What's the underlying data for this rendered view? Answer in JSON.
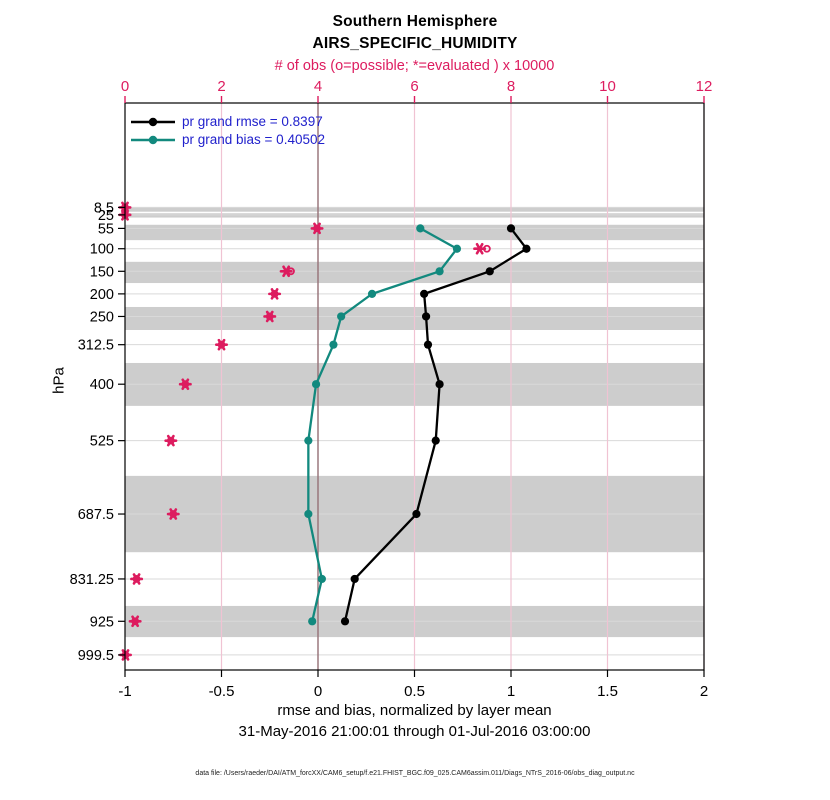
{
  "title": {
    "line1": "Southern Hemisphere",
    "line2": "AIRS_SPECIFIC_HUMIDITY"
  },
  "top_axis": {
    "label": "# of obs (o=possible; *=evaluated ) x 10000",
    "ticks": [
      0,
      2,
      4,
      6,
      8,
      10,
      12
    ],
    "range": [
      0,
      12
    ],
    "color": "#dd1c5f"
  },
  "bottom_axis": {
    "label": "rmse and bias, normalized by layer mean",
    "sublabel": "31-May-2016 21:00:01 through 01-Jul-2016 03:00:00",
    "ticks": [
      -1,
      -0.5,
      0,
      0.5,
      1,
      1.5,
      2
    ],
    "range": [
      -1,
      2
    ]
  },
  "left_axis": {
    "label": "hPa",
    "ticks": [
      8.5,
      25,
      55,
      100,
      150,
      200,
      250,
      312.5,
      400,
      525,
      687.5,
      831.25,
      925,
      999.5
    ]
  },
  "legend": [
    {
      "label": "pr grand rmse = 0.8397",
      "color": "#000000"
    },
    {
      "label": "pr grand bias = 0.40502",
      "color": "#12897e"
    }
  ],
  "footer": "data file: /Users/raeder/DAI/ATM_forcXX/CAM6_setup/f.e21.FHIST_BGC.f09_025.CAM6assim.011/Diags_NTrS_2016-06/obs_diag_output.nc",
  "colors": {
    "obs_magenta": "#dd1c5f",
    "grid_pink": "#f0c3d3",
    "zero_line": "#8d6a6e",
    "band_gray": "#cdcdcd",
    "level_gridline": "#d9d9d9",
    "legend_text_blue": "#2121cc",
    "rmse_black": "#000000",
    "bias_teal": "#12897e"
  },
  "chart_data": {
    "type": "line",
    "title": "Southern Hemisphere AIRS_SPECIFIC_HUMIDITY",
    "xlabel": "rmse and bias, normalized by layer mean",
    "ylabel": "hPa",
    "xlim": [
      -1,
      2
    ],
    "top_xlim_obs_x10000": [
      0,
      12
    ],
    "pressure_levels": [
      8.5,
      25,
      55,
      100,
      150,
      200,
      250,
      312.5,
      400,
      525,
      687.5,
      831.25,
      925,
      999.5
    ],
    "series": [
      {
        "name": "pr grand rmse",
        "color": "#000000",
        "points": [
          {
            "p": 55,
            "v": 1.0
          },
          {
            "p": 100,
            "v": 1.08
          },
          {
            "p": 150,
            "v": 0.89
          },
          {
            "p": 200,
            "v": 0.55
          },
          {
            "p": 250,
            "v": 0.56
          },
          {
            "p": 312.5,
            "v": 0.57
          },
          {
            "p": 400,
            "v": 0.63
          },
          {
            "p": 525,
            "v": 0.61
          },
          {
            "p": 687.5,
            "v": 0.51
          },
          {
            "p": 831.25,
            "v": 0.19
          },
          {
            "p": 925,
            "v": 0.14
          }
        ]
      },
      {
        "name": "pr grand bias",
        "color": "#12897e",
        "points": [
          {
            "p": 55,
            "v": 0.53
          },
          {
            "p": 100,
            "v": 0.72
          },
          {
            "p": 150,
            "v": 0.63
          },
          {
            "p": 200,
            "v": 0.28
          },
          {
            "p": 250,
            "v": 0.12
          },
          {
            "p": 312.5,
            "v": 0.08
          },
          {
            "p": 400,
            "v": -0.01
          },
          {
            "p": 525,
            "v": -0.05
          },
          {
            "p": 687.5,
            "v": -0.05
          },
          {
            "p": 831.25,
            "v": 0.02
          },
          {
            "p": 925,
            "v": -0.03
          }
        ]
      }
    ],
    "obs_counts_x10000": [
      {
        "p": 8.5,
        "possible": 0.0,
        "evaluated": 0.0
      },
      {
        "p": 25,
        "possible": 0.0,
        "evaluated": 0.0
      },
      {
        "p": 55,
        "possible": 3.98,
        "evaluated": 3.98
      },
      {
        "p": 100,
        "possible": 7.5,
        "evaluated": 7.35
      },
      {
        "p": 150,
        "possible": 3.44,
        "evaluated": 3.34
      },
      {
        "p": 200,
        "possible": 3.1,
        "evaluated": 3.1
      },
      {
        "p": 250,
        "possible": 3.0,
        "evaluated": 3.0
      },
      {
        "p": 312.5,
        "possible": 2.0,
        "evaluated": 2.0
      },
      {
        "p": 400,
        "possible": 1.25,
        "evaluated": 1.25
      },
      {
        "p": 525,
        "possible": 0.95,
        "evaluated": 0.95
      },
      {
        "p": 687.5,
        "possible": 1.0,
        "evaluated": 1.0
      },
      {
        "p": 831.25,
        "possible": 0.24,
        "evaluated": 0.24
      },
      {
        "p": 925,
        "possible": 0.21,
        "evaluated": 0.21
      },
      {
        "p": 999.5,
        "possible": 0.01,
        "evaluated": 0.01
      }
    ],
    "gray_bands_pressure": [
      [
        8,
        18
      ],
      [
        21.5,
        31
      ],
      [
        47,
        81
      ],
      [
        129,
        176
      ],
      [
        229,
        280
      ],
      [
        353,
        448
      ],
      [
        603,
        772
      ],
      [
        891,
        960
      ]
    ],
    "grid": true,
    "legend_position": "top-left-inside"
  }
}
